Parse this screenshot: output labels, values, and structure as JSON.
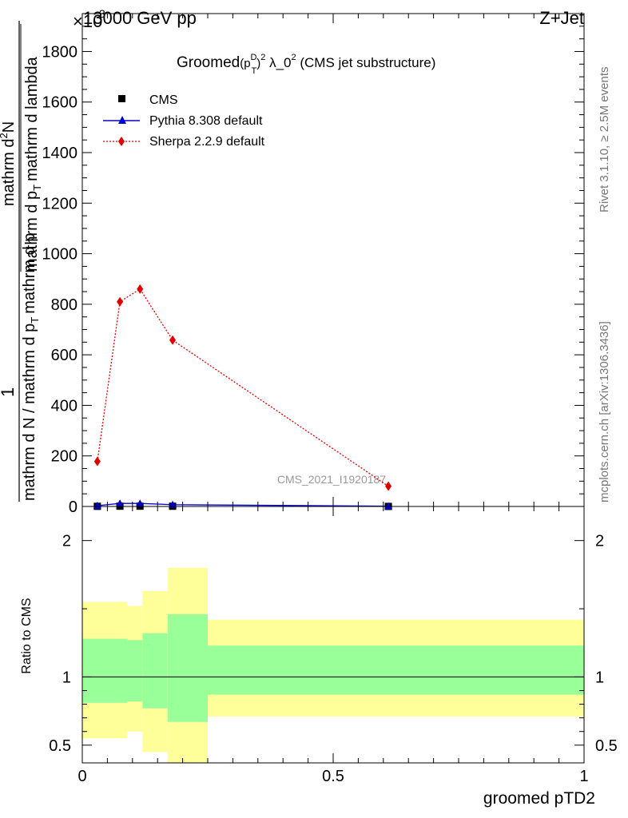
{
  "header": {
    "left": "13000 GeV pp",
    "right": "Z+Jet",
    "exponent_base": "×10",
    "exponent_power": "3"
  },
  "plot_title": {
    "prefix": "Groomed",
    "p": "(p",
    "sup_D": "D",
    "sub_T": "T",
    "paren_close": ")",
    "sq1": "2",
    "lambda_text": " λ_0",
    "sq2": "2",
    "suffix": " (CMS jet substructure)"
  },
  "y_label": {
    "numerator": "1",
    "numerator_line1": "mathrm d N / mathrm d p",
    "numerator_sub1": "T",
    "numerator_line2": "mathrm d p",
    "denominator_line1": "mathrm d",
    "denominator_sup": "2",
    "denominator_line2": "N",
    "denominator_line3": "mathrm d p",
    "denominator_sub": "T",
    "denominator_line4": "mathrm d lambda"
  },
  "ratio_ylabel": "Ratio to CMS",
  "x_label": "groomed pTD2",
  "watermark": "CMS_2021_I1920187",
  "side_text": {
    "rivet": "Rivet 3.1.10, ≥ 2.5M events",
    "mcplots": "mcplots.cern.ch [arXiv:1306.3436]"
  },
  "colors": {
    "cms": "#000000",
    "pythia": "#0000cc",
    "sherpa": "#dd0000",
    "band_inner": "#99ff99",
    "band_outer": "#ffff99"
  },
  "chart_data": [
    {
      "type": "line",
      "panel": "main",
      "xlim": [
        0,
        1
      ],
      "ylim": [
        0,
        1950
      ],
      "y_multiplier": 1000,
      "y_ticks": [
        0,
        200,
        400,
        600,
        800,
        1000,
        1200,
        1400,
        1600,
        1800
      ],
      "y_tick_labels": [
        "0",
        "200",
        "400",
        "600",
        "800",
        "1000",
        "1200",
        "1400",
        "1600",
        "1800"
      ],
      "x_ticks": [
        0,
        0.5,
        1
      ],
      "x_tick_labels": [
        "0",
        "0.5",
        "1"
      ],
      "series": [
        {
          "name": "CMS",
          "marker": "square",
          "x": [
            0.03,
            0.075,
            0.115,
            0.18,
            0.61
          ],
          "y": [
            0.5,
            1.0,
            1.0,
            0.8,
            0.2
          ]
        },
        {
          "name": "Pythia 8.308 default",
          "marker": "triangle",
          "x": [
            0.03,
            0.075,
            0.115,
            0.18,
            0.61
          ],
          "y": [
            3,
            12,
            12,
            7,
            1
          ]
        },
        {
          "name": "Sherpa 2.2.9 default",
          "marker": "diamond",
          "x": [
            0.03,
            0.075,
            0.115,
            0.18,
            0.61
          ],
          "y": [
            178,
            810,
            860,
            658,
            80
          ]
        }
      ]
    },
    {
      "type": "area",
      "panel": "ratio",
      "xlim": [
        0,
        1
      ],
      "ylim": [
        0.37,
        2.25
      ],
      "y_ticks": [
        0.5,
        1,
        2
      ],
      "y_tick_labels": [
        "0.5",
        "1",
        "2"
      ],
      "x_ticks": [
        0,
        0.5,
        1
      ],
      "x_tick_labels": [
        "0",
        "0.5",
        "1"
      ],
      "reference": 1,
      "bins": [
        {
          "x0": 0.0,
          "x1": 0.09,
          "inner": [
            0.81,
            1.28
          ],
          "outer": [
            0.55,
            1.55
          ]
        },
        {
          "x0": 0.09,
          "x1": 0.12,
          "inner": [
            0.82,
            1.27
          ],
          "outer": [
            0.6,
            1.52
          ]
        },
        {
          "x0": 0.12,
          "x1": 0.17,
          "inner": [
            0.77,
            1.32
          ],
          "outer": [
            0.45,
            1.63
          ]
        },
        {
          "x0": 0.17,
          "x1": 0.25,
          "inner": [
            0.67,
            1.46
          ],
          "outer": [
            0.37,
            1.8
          ]
        },
        {
          "x0": 0.25,
          "x1": 1.0,
          "inner": [
            0.87,
            1.23
          ],
          "outer": [
            0.71,
            1.42
          ]
        }
      ]
    }
  ]
}
